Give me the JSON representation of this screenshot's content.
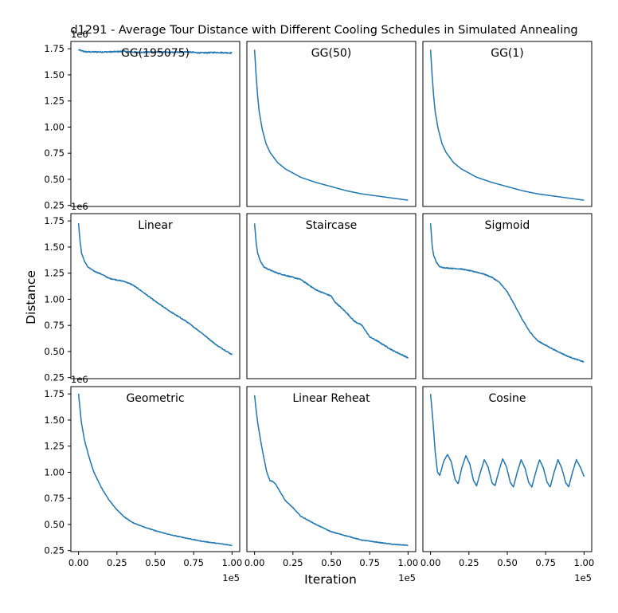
{
  "figure": {
    "title": "d1291 - Average Tour Distance with Different Cooling Schedules in Simulated Annealing",
    "xlabel": "Iteration",
    "ylabel": "Distance",
    "y_offset_label": "1e6",
    "x_offset_label": "1e5",
    "line_color": "#1f77b4"
  },
  "chart_data": {
    "type": "line",
    "layout": "3x3 grid, shared axes",
    "x_unit": "iterations (×1e5)",
    "y_unit": "distance (×1e6)",
    "xlim": [
      -0.05,
      1.05
    ],
    "ylim": [
      0.24,
      1.82
    ],
    "x_ticks": [
      0.0,
      0.25,
      0.5,
      0.75,
      1.0
    ],
    "x_tick_labels": [
      "0.00",
      "0.25",
      "0.50",
      "0.75",
      "1.00"
    ],
    "y_ticks": [
      0.25,
      0.5,
      0.75,
      1.0,
      1.25,
      1.5,
      1.75
    ],
    "y_tick_labels": [
      "0.25",
      "0.50",
      "0.75",
      "1.00",
      "1.25",
      "1.50",
      "1.75"
    ],
    "panels": [
      {
        "title": "GG(195075)",
        "noise": 0.006,
        "points": [
          [
            0,
            1.74
          ],
          [
            0.02,
            1.73
          ],
          [
            0.05,
            1.72
          ],
          [
            0.1,
            1.72
          ],
          [
            0.2,
            1.72
          ],
          [
            0.3,
            1.725
          ],
          [
            0.4,
            1.715
          ],
          [
            0.5,
            1.72
          ],
          [
            0.6,
            1.715
          ],
          [
            0.7,
            1.72
          ],
          [
            0.8,
            1.71
          ],
          [
            0.9,
            1.715
          ],
          [
            1.0,
            1.71
          ]
        ]
      },
      {
        "title": "GG(50)",
        "noise": 0,
        "points": [
          [
            0,
            1.74
          ],
          [
            0.01,
            1.5
          ],
          [
            0.02,
            1.3
          ],
          [
            0.03,
            1.15
          ],
          [
            0.05,
            0.98
          ],
          [
            0.075,
            0.84
          ],
          [
            0.1,
            0.76
          ],
          [
            0.15,
            0.66
          ],
          [
            0.2,
            0.6
          ],
          [
            0.3,
            0.52
          ],
          [
            0.4,
            0.47
          ],
          [
            0.5,
            0.43
          ],
          [
            0.6,
            0.39
          ],
          [
            0.7,
            0.36
          ],
          [
            0.8,
            0.34
          ],
          [
            0.9,
            0.32
          ],
          [
            1.0,
            0.3
          ]
        ]
      },
      {
        "title": "GG(1)",
        "noise": 0,
        "points": [
          [
            0,
            1.74
          ],
          [
            0.01,
            1.5
          ],
          [
            0.02,
            1.3
          ],
          [
            0.03,
            1.15
          ],
          [
            0.05,
            0.98
          ],
          [
            0.075,
            0.84
          ],
          [
            0.1,
            0.76
          ],
          [
            0.15,
            0.66
          ],
          [
            0.2,
            0.6
          ],
          [
            0.3,
            0.52
          ],
          [
            0.4,
            0.47
          ],
          [
            0.5,
            0.43
          ],
          [
            0.6,
            0.39
          ],
          [
            0.7,
            0.36
          ],
          [
            0.8,
            0.34
          ],
          [
            0.9,
            0.32
          ],
          [
            1.0,
            0.3
          ]
        ]
      },
      {
        "title": "Linear",
        "noise": 0.004,
        "points": [
          [
            0,
            1.73
          ],
          [
            0.01,
            1.55
          ],
          [
            0.02,
            1.44
          ],
          [
            0.04,
            1.36
          ],
          [
            0.06,
            1.31
          ],
          [
            0.1,
            1.27
          ],
          [
            0.15,
            1.24
          ],
          [
            0.2,
            1.2
          ],
          [
            0.3,
            1.17
          ],
          [
            0.35,
            1.14
          ],
          [
            0.4,
            1.09
          ],
          [
            0.5,
            0.98
          ],
          [
            0.6,
            0.88
          ],
          [
            0.7,
            0.79
          ],
          [
            0.8,
            0.68
          ],
          [
            0.9,
            0.56
          ],
          [
            1.0,
            0.47
          ]
        ]
      },
      {
        "title": "Staircase",
        "noise": 0.005,
        "points": [
          [
            0,
            1.73
          ],
          [
            0.01,
            1.55
          ],
          [
            0.02,
            1.44
          ],
          [
            0.04,
            1.36
          ],
          [
            0.06,
            1.31
          ],
          [
            0.1,
            1.28
          ],
          [
            0.15,
            1.25
          ],
          [
            0.2,
            1.23
          ],
          [
            0.3,
            1.19
          ],
          [
            0.35,
            1.14
          ],
          [
            0.4,
            1.09
          ],
          [
            0.5,
            1.03
          ],
          [
            0.52,
            0.98
          ],
          [
            0.6,
            0.87
          ],
          [
            0.65,
            0.79
          ],
          [
            0.7,
            0.75
          ],
          [
            0.75,
            0.64
          ],
          [
            0.8,
            0.6
          ],
          [
            0.9,
            0.51
          ],
          [
            1.0,
            0.44
          ]
        ]
      },
      {
        "title": "Sigmoid",
        "noise": 0.004,
        "points": [
          [
            0,
            1.73
          ],
          [
            0.01,
            1.52
          ],
          [
            0.02,
            1.42
          ],
          [
            0.04,
            1.35
          ],
          [
            0.06,
            1.31
          ],
          [
            0.1,
            1.3
          ],
          [
            0.2,
            1.29
          ],
          [
            0.3,
            1.26
          ],
          [
            0.35,
            1.24
          ],
          [
            0.4,
            1.21
          ],
          [
            0.45,
            1.16
          ],
          [
            0.5,
            1.07
          ],
          [
            0.55,
            0.94
          ],
          [
            0.6,
            0.8
          ],
          [
            0.65,
            0.68
          ],
          [
            0.7,
            0.6
          ],
          [
            0.8,
            0.52
          ],
          [
            0.9,
            0.45
          ],
          [
            1.0,
            0.4
          ]
        ]
      },
      {
        "title": "Geometric",
        "noise": 0.003,
        "points": [
          [
            0,
            1.75
          ],
          [
            0.01,
            1.6
          ],
          [
            0.02,
            1.46
          ],
          [
            0.04,
            1.3
          ],
          [
            0.06,
            1.19
          ],
          [
            0.08,
            1.09
          ],
          [
            0.1,
            1.0
          ],
          [
            0.15,
            0.85
          ],
          [
            0.2,
            0.73
          ],
          [
            0.25,
            0.64
          ],
          [
            0.3,
            0.57
          ],
          [
            0.35,
            0.52
          ],
          [
            0.4,
            0.49
          ],
          [
            0.5,
            0.44
          ],
          [
            0.6,
            0.4
          ],
          [
            0.7,
            0.37
          ],
          [
            0.8,
            0.34
          ],
          [
            0.9,
            0.32
          ],
          [
            1.0,
            0.3
          ]
        ]
      },
      {
        "title": "Linear Reheat",
        "noise": 0.003,
        "points": [
          [
            0,
            1.74
          ],
          [
            0.01,
            1.6
          ],
          [
            0.02,
            1.48
          ],
          [
            0.04,
            1.3
          ],
          [
            0.06,
            1.14
          ],
          [
            0.08,
            1.0
          ],
          [
            0.1,
            0.92
          ],
          [
            0.12,
            0.91
          ],
          [
            0.14,
            0.88
          ],
          [
            0.16,
            0.83
          ],
          [
            0.2,
            0.73
          ],
          [
            0.25,
            0.66
          ],
          [
            0.3,
            0.58
          ],
          [
            0.35,
            0.54
          ],
          [
            0.4,
            0.5
          ],
          [
            0.5,
            0.43
          ],
          [
            0.6,
            0.39
          ],
          [
            0.7,
            0.35
          ],
          [
            0.8,
            0.33
          ],
          [
            0.9,
            0.31
          ],
          [
            1.0,
            0.3
          ]
        ]
      },
      {
        "title": "Cosine",
        "noise": 0.003,
        "points": [
          [
            0,
            1.75
          ],
          [
            0.015,
            1.5
          ],
          [
            0.03,
            1.2
          ],
          [
            0.045,
            1.0
          ],
          [
            0.06,
            0.97
          ],
          [
            0.085,
            1.1
          ],
          [
            0.11,
            1.17
          ],
          [
            0.135,
            1.1
          ],
          [
            0.16,
            0.93
          ],
          [
            0.18,
            0.89
          ],
          [
            0.205,
            1.05
          ],
          [
            0.23,
            1.16
          ],
          [
            0.255,
            1.08
          ],
          [
            0.28,
            0.92
          ],
          [
            0.3,
            0.87
          ],
          [
            0.325,
            1.0
          ],
          [
            0.35,
            1.12
          ],
          [
            0.375,
            1.05
          ],
          [
            0.4,
            0.9
          ],
          [
            0.42,
            0.87
          ],
          [
            0.445,
            1.01
          ],
          [
            0.47,
            1.13
          ],
          [
            0.495,
            1.05
          ],
          [
            0.52,
            0.9
          ],
          [
            0.54,
            0.86
          ],
          [
            0.565,
            1.0
          ],
          [
            0.59,
            1.12
          ],
          [
            0.615,
            1.04
          ],
          [
            0.64,
            0.9
          ],
          [
            0.66,
            0.86
          ],
          [
            0.685,
            1.0
          ],
          [
            0.71,
            1.12
          ],
          [
            0.735,
            1.04
          ],
          [
            0.76,
            0.9
          ],
          [
            0.78,
            0.86
          ],
          [
            0.805,
            1.0
          ],
          [
            0.83,
            1.12
          ],
          [
            0.855,
            1.04
          ],
          [
            0.88,
            0.9
          ],
          [
            0.9,
            0.86
          ],
          [
            0.925,
            1.0
          ],
          [
            0.95,
            1.12
          ],
          [
            0.975,
            1.05
          ],
          [
            1.0,
            0.96
          ]
        ]
      }
    ]
  }
}
